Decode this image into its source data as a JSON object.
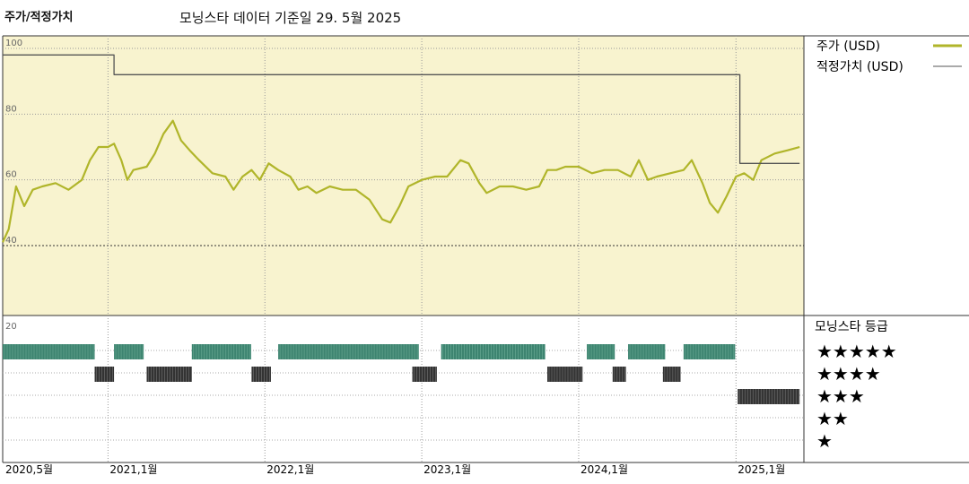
{
  "header": {
    "left_title": "주가/적정가치",
    "center_title": "모닝스타 데이터 기준일 29. 5월 2025"
  },
  "colors": {
    "plot_bg": "#f8f3cf",
    "price_line": "#b0b52a",
    "fair_line": "#555555",
    "five_star": "#3d8470",
    "other_star": "#333333"
  },
  "chart_data": [
    {
      "type": "line",
      "y_ticks": [
        "100",
        "80",
        "60",
        "40"
      ],
      "ylim": [
        40,
        100
      ],
      "x_dates_start": "2020-05",
      "series": [
        {
          "name": "주가 (USD)",
          "points": [
            [
              "2020-05-01",
              41
            ],
            [
              "2020-05-15",
              45
            ],
            [
              "2020-06-01",
              58
            ],
            [
              "2020-06-20",
              52
            ],
            [
              "2020-07-10",
              57
            ],
            [
              "2020-08-01",
              58
            ],
            [
              "2020-09-01",
              59
            ],
            [
              "2020-10-01",
              57
            ],
            [
              "2020-11-01",
              60
            ],
            [
              "2020-11-20",
              66
            ],
            [
              "2020-12-10",
              70
            ],
            [
              "2021-01-01",
              70
            ],
            [
              "2021-01-15",
              71
            ],
            [
              "2021-02-01",
              66
            ],
            [
              "2021-02-15",
              60
            ],
            [
              "2021-03-01",
              63
            ],
            [
              "2021-04-01",
              64
            ],
            [
              "2021-04-20",
              68
            ],
            [
              "2021-05-10",
              74
            ],
            [
              "2021-06-01",
              78
            ],
            [
              "2021-06-20",
              72
            ],
            [
              "2021-07-10",
              69
            ],
            [
              "2021-08-01",
              66
            ],
            [
              "2021-09-01",
              62
            ],
            [
              "2021-10-01",
              61
            ],
            [
              "2021-10-20",
              57
            ],
            [
              "2021-11-10",
              61
            ],
            [
              "2021-12-01",
              63
            ],
            [
              "2021-12-20",
              60
            ],
            [
              "2022-01-10",
              65
            ],
            [
              "2022-02-01",
              63
            ],
            [
              "2022-03-01",
              61
            ],
            [
              "2022-03-20",
              57
            ],
            [
              "2022-04-10",
              58
            ],
            [
              "2022-05-01",
              56
            ],
            [
              "2022-06-01",
              58
            ],
            [
              "2022-07-01",
              57
            ],
            [
              "2022-08-01",
              57
            ],
            [
              "2022-09-01",
              54
            ],
            [
              "2022-10-01",
              48
            ],
            [
              "2022-10-20",
              47
            ],
            [
              "2022-11-10",
              52
            ],
            [
              "2022-12-01",
              58
            ],
            [
              "2023-01-01",
              60
            ],
            [
              "2023-02-01",
              61
            ],
            [
              "2023-03-01",
              61
            ],
            [
              "2023-04-01",
              66
            ],
            [
              "2023-04-20",
              65
            ],
            [
              "2023-05-15",
              59
            ],
            [
              "2023-06-01",
              56
            ],
            [
              "2023-07-01",
              58
            ],
            [
              "2023-08-01",
              58
            ],
            [
              "2023-09-01",
              57
            ],
            [
              "2023-10-01",
              58
            ],
            [
              "2023-10-20",
              63
            ],
            [
              "2023-11-10",
              63
            ],
            [
              "2023-12-01",
              64
            ],
            [
              "2024-01-01",
              64
            ],
            [
              "2024-02-01",
              62
            ],
            [
              "2024-03-01",
              63
            ],
            [
              "2024-04-01",
              63
            ],
            [
              "2024-05-01",
              61
            ],
            [
              "2024-05-20",
              66
            ],
            [
              "2024-06-10",
              60
            ],
            [
              "2024-07-01",
              61
            ],
            [
              "2024-08-01",
              62
            ],
            [
              "2024-09-01",
              63
            ],
            [
              "2024-09-20",
              66
            ],
            [
              "2024-10-15",
              59
            ],
            [
              "2024-11-01",
              53
            ],
            [
              "2024-11-20",
              50
            ],
            [
              "2024-12-10",
              55
            ],
            [
              "2025-01-01",
              61
            ],
            [
              "2025-01-20",
              62
            ],
            [
              "2025-02-10",
              60
            ],
            [
              "2025-03-01",
              66
            ],
            [
              "2025-04-01",
              68
            ],
            [
              "2025-05-01",
              69
            ],
            [
              "2025-05-29",
              70
            ]
          ]
        },
        {
          "name": "적정가치 (USD)",
          "points": [
            [
              "2020-05-01",
              98
            ],
            [
              "2021-01-15",
              98
            ],
            [
              "2021-01-15",
              92
            ],
            [
              "2025-01-10",
              92
            ],
            [
              "2025-01-10",
              65
            ],
            [
              "2025-05-29",
              65
            ]
          ]
        }
      ],
      "legend": {
        "price": "주가 (USD)",
        "fair": "적정가치 (USD)"
      },
      "x_ticks": [
        "2020,5월",
        "2021,1월",
        "2022,1월",
        "2023,1월",
        "2024,1월",
        "2025,1월"
      ]
    },
    {
      "type": "table",
      "title": "모닝스타 등급",
      "top_label": "20",
      "levels": [
        "★★★★★",
        "★★★★",
        "★★★",
        "★★",
        "★"
      ],
      "segments": [
        {
          "stars": 5,
          "start": "2020-05-01",
          "end": "2020-12-01"
        },
        {
          "stars": 4,
          "start": "2020-12-01",
          "end": "2021-01-15"
        },
        {
          "stars": 5,
          "start": "2021-01-15",
          "end": "2021-03-25"
        },
        {
          "stars": 4,
          "start": "2021-04-01",
          "end": "2021-07-15"
        },
        {
          "stars": 5,
          "start": "2021-07-15",
          "end": "2021-11-30"
        },
        {
          "stars": 4,
          "start": "2021-12-01",
          "end": "2022-01-15"
        },
        {
          "stars": 5,
          "start": "2022-02-01",
          "end": "2022-12-25"
        },
        {
          "stars": 4,
          "start": "2022-12-10",
          "end": "2023-02-05"
        },
        {
          "stars": 5,
          "start": "2023-02-15",
          "end": "2023-10-15"
        },
        {
          "stars": 4,
          "start": "2023-10-20",
          "end": "2024-01-10"
        },
        {
          "stars": 5,
          "start": "2024-01-20",
          "end": "2024-03-25"
        },
        {
          "stars": 4,
          "start": "2024-03-20",
          "end": "2024-04-20"
        },
        {
          "stars": 5,
          "start": "2024-04-25",
          "end": "2024-07-20"
        },
        {
          "stars": 4,
          "start": "2024-07-15",
          "end": "2024-08-25"
        },
        {
          "stars": 5,
          "start": "2024-09-01",
          "end": "2024-12-30"
        },
        {
          "stars": 3,
          "start": "2025-01-05",
          "end": "2025-05-29"
        }
      ]
    }
  ]
}
